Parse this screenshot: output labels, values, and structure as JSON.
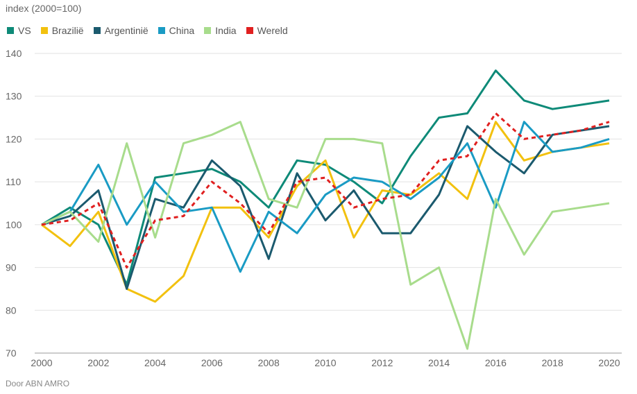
{
  "ylabel": "index (2000=100)",
  "source": "Door ABN AMRO",
  "chart_data": {
    "type": "line",
    "ylabel": "index (2000=100)",
    "xlabel": "",
    "ylim": [
      70,
      140
    ],
    "xlim": [
      2000,
      2020
    ],
    "yticks": [
      70,
      80,
      90,
      100,
      110,
      120,
      130,
      140
    ],
    "xticks": [
      2000,
      2002,
      2004,
      2006,
      2008,
      2010,
      2012,
      2014,
      2016,
      2018,
      2020
    ],
    "grid": "horizontal",
    "legend_position": "top-left",
    "x": [
      2000,
      2001,
      2002,
      2003,
      2004,
      2005,
      2006,
      2007,
      2008,
      2009,
      2010,
      2011,
      2012,
      2013,
      2014,
      2015,
      2016,
      2017,
      2018,
      2019,
      2020
    ],
    "series": [
      {
        "name": "VS",
        "color": "#0e8a78",
        "dashed": false,
        "values": [
          100,
          104,
          100,
          86,
          111,
          112,
          113,
          110,
          104,
          115,
          114,
          110,
          105,
          116,
          125,
          126,
          136,
          129,
          127,
          128,
          129
        ]
      },
      {
        "name": "Brazilië",
        "color": "#f2c10f",
        "dashed": false,
        "values": [
          100,
          95,
          103,
          85,
          82,
          88,
          104,
          104,
          97,
          109,
          115,
          97,
          108,
          107,
          112,
          106,
          124,
          115,
          117,
          118,
          119
        ]
      },
      {
        "name": "Argentinië",
        "color": "#1b5a6e",
        "dashed": false,
        "values": [
          100,
          102,
          108,
          85,
          106,
          104,
          115,
          109,
          92,
          112,
          101,
          108,
          98,
          98,
          107,
          123,
          117,
          112,
          121,
          122,
          123
        ]
      },
      {
        "name": "China",
        "color": "#1a9bc4",
        "dashed": false,
        "values": [
          100,
          103,
          114,
          100,
          110,
          103,
          104,
          89,
          103,
          98,
          107,
          111,
          110,
          106,
          111,
          119,
          104,
          124,
          117,
          118,
          120
        ]
      },
      {
        "name": "India",
        "color": "#a8dc8c",
        "dashed": false,
        "values": [
          100,
          103,
          96,
          119,
          97,
          119,
          121,
          124,
          106,
          104,
          120,
          120,
          119,
          86,
          90,
          71,
          106,
          93,
          103,
          104,
          105
        ]
      },
      {
        "name": "Wereld",
        "color": "#e02020",
        "dashed": true,
        "values": [
          100,
          101,
          105,
          90,
          101,
          102,
          110,
          105,
          98,
          110,
          111,
          104,
          106,
          107,
          115,
          116,
          126,
          120,
          121,
          122,
          124
        ]
      }
    ]
  }
}
